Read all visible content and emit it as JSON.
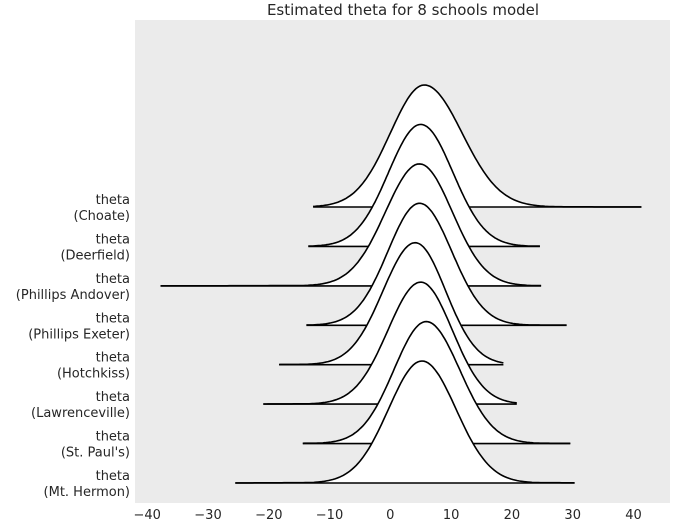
{
  "chart_data": {
    "type": "ridgeline",
    "title": "Estimated theta for 8 schools model",
    "xlabel": "",
    "ylabel": "",
    "xlim": [
      -42,
      46
    ],
    "x_ticks": [
      -40,
      -30,
      -20,
      -10,
      0,
      10,
      20,
      30,
      40
    ],
    "x_tick_labels": [
      "−40",
      "−30",
      "−20",
      "−10",
      "0",
      "10",
      "20",
      "30",
      "40"
    ],
    "grid": false,
    "background_color": "#ebebeb",
    "fill_color": "#ffffff",
    "line_color": "#000000",
    "series": [
      {
        "label_top": "theta",
        "label_bottom": "(Choate)",
        "mode": 5.6,
        "range": [
          -12.7,
          41.3
        ],
        "sd_left": 5.6,
        "sd_right": 6.2
      },
      {
        "label_top": "theta",
        "label_bottom": "(Deerfield)",
        "mode": 5.0,
        "range": [
          -13.5,
          24.6
        ],
        "sd_left": 5.3,
        "sd_right": 5.3
      },
      {
        "label_top": "theta",
        "label_bottom": "(Phillips Andover)",
        "mode": 4.8,
        "range": [
          -37.8,
          24.8
        ],
        "sd_left": 5.6,
        "sd_right": 5.4
      },
      {
        "label_top": "theta",
        "label_bottom": "(Phillips Exeter)",
        "mode": 4.8,
        "range": [
          -13.8,
          29.0
        ],
        "sd_left": 5.2,
        "sd_right": 5.3
      },
      {
        "label_top": "theta",
        "label_bottom": "(Hotchkiss)",
        "mode": 4.1,
        "range": [
          -18.3,
          18.6
        ],
        "sd_left": 5.3,
        "sd_right": 5.0
      },
      {
        "label_top": "theta",
        "label_bottom": "(Lawrenceville)",
        "mode": 5.0,
        "range": [
          -20.9,
          20.8
        ],
        "sd_left": 5.4,
        "sd_right": 5.2
      },
      {
        "label_top": "theta",
        "label_bottom": "(St. Paul's)",
        "mode": 5.9,
        "range": [
          -14.4,
          29.6
        ],
        "sd_left": 5.3,
        "sd_right": 5.5
      },
      {
        "label_top": "theta",
        "label_bottom": "(Mt. Hermon)",
        "mode": 5.2,
        "range": [
          -25.5,
          30.3
        ],
        "sd_left": 5.5,
        "sd_right": 5.6
      }
    ]
  }
}
